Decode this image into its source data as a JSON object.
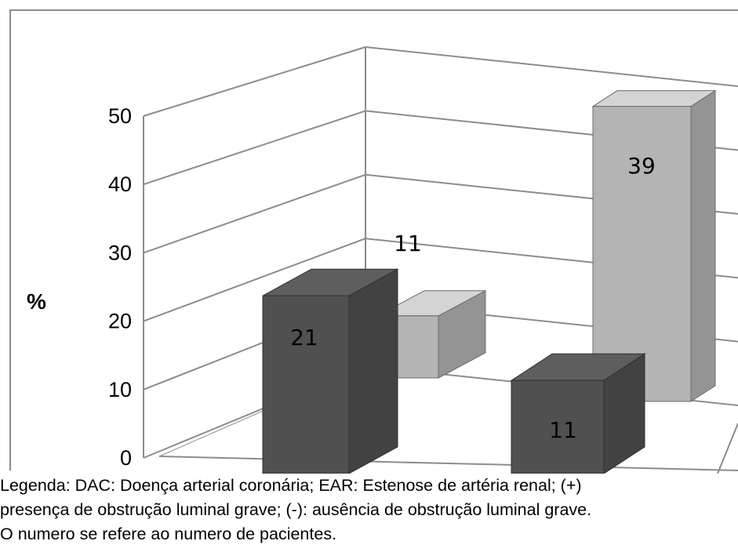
{
  "chart_data": {
    "type": "bar",
    "ylabel": "%",
    "yticks": [
      0,
      10,
      20,
      30,
      40,
      50
    ],
    "ylim": [
      0,
      50
    ],
    "series": [
      {
        "color": "#505050",
        "values": [
          21,
          11
        ]
      },
      {
        "color": "#b4b4b4",
        "values": [
          11,
          39
        ]
      }
    ],
    "grid": true
  },
  "caption": {
    "line1": "Legenda: DAC: Doença arterial coronária; EAR: Estenose de artéria renal; (+)",
    "line2": "presença de obstrução luminal grave; (-): ausência de obstrução luminal grave.",
    "line3": "O numero se refere ao numero de pacientes."
  }
}
